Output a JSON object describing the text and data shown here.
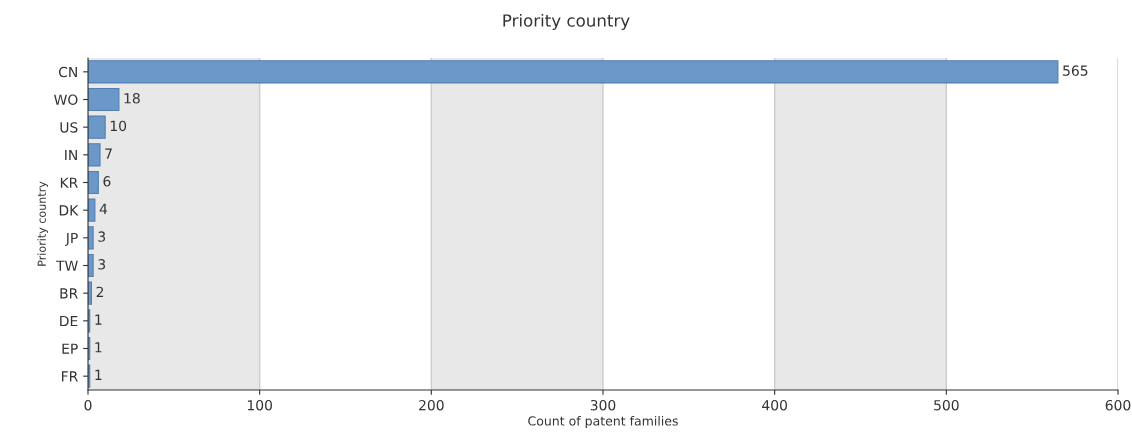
{
  "chart_data": {
    "type": "bar",
    "orientation": "horizontal",
    "title": "Priority country",
    "xlabel": "Count of patent families",
    "ylabel": "Priority country",
    "categories": [
      "CN",
      "WO",
      "US",
      "IN",
      "KR",
      "DK",
      "JP",
      "TW",
      "BR",
      "DE",
      "EP",
      "FR"
    ],
    "values": [
      565,
      18,
      10,
      7,
      6,
      4,
      3,
      3,
      2,
      1,
      1,
      1
    ],
    "color": "#6b98c8",
    "data_labels": true,
    "xlim": [
      0,
      600
    ],
    "xticks": [
      0,
      100,
      200,
      300,
      400,
      500,
      600
    ],
    "grid": "x",
    "bands": [
      {
        "axis": "x",
        "from": 0,
        "to": 100,
        "color": "#e8e8e8"
      },
      {
        "axis": "x",
        "from": 200,
        "to": 300,
        "color": "#e8e8e8"
      },
      {
        "axis": "x",
        "from": 400,
        "to": 500,
        "color": "#e8e8e8"
      }
    ]
  }
}
